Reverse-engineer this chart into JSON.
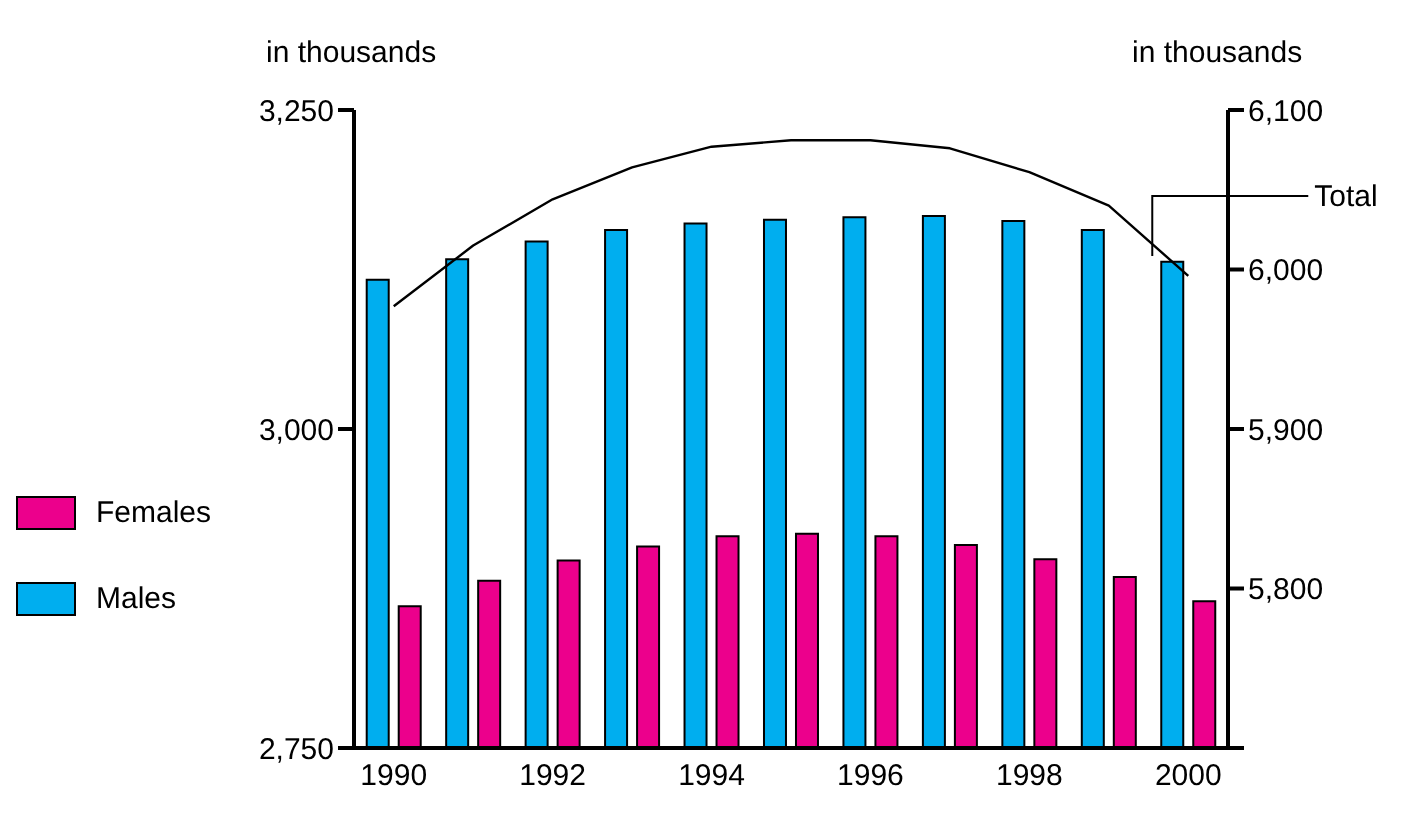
{
  "chart_data": {
    "type": "bar",
    "ylabel": "in thousands",
    "y2label": "in thousands",
    "categories": [
      "1990",
      null,
      "1992",
      null,
      "1994",
      null,
      "1996",
      null,
      "1998",
      null,
      "2000"
    ],
    "series": [
      {
        "name": "Males",
        "color": "#00aeef",
        "values": [
          3117,
          3133,
          3147,
          3156,
          3161,
          3164,
          3166,
          3167,
          3163,
          3156,
          3131
        ]
      },
      {
        "name": "Females",
        "color": "#ec008c",
        "values": [
          2861,
          2881,
          2897,
          2908,
          2916,
          2918,
          2916,
          2909,
          2898,
          2884,
          2865
        ]
      },
      {
        "name": "Total",
        "type": "line",
        "axis": "y2",
        "color": "#000000",
        "values": [
          5977,
          6015,
          6044,
          6064,
          6077,
          6081,
          6081,
          6076,
          6061,
          6040,
          5996
        ]
      }
    ],
    "ylim": [
      2750,
      3250
    ],
    "yticks": [
      {
        "value": 2750,
        "label": "2,750"
      },
      {
        "value": 3000,
        "label": "3,000"
      },
      {
        "value": 3250,
        "label": "3,250"
      }
    ],
    "y2lim": [
      5700,
      6100
    ],
    "y2ticks": [
      {
        "value": 5700,
        "label": null
      },
      {
        "value": 5800,
        "label": "5,800"
      },
      {
        "value": 5900,
        "label": "5,900"
      },
      {
        "value": 6000,
        "label": "6,000"
      },
      {
        "value": 6100,
        "label": "6,100"
      }
    ],
    "legend": "left",
    "marker": "none"
  }
}
